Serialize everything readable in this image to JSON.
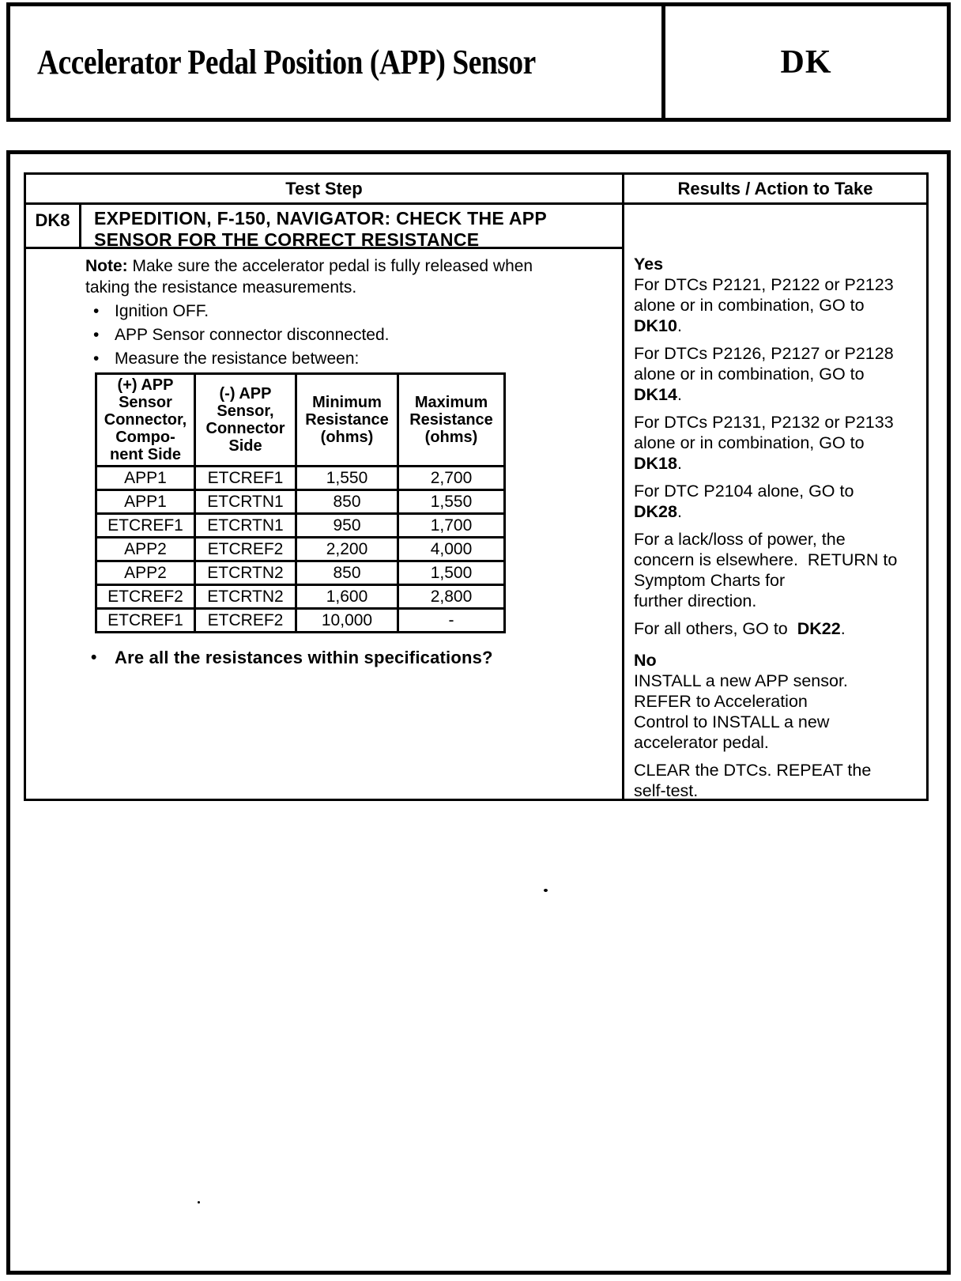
{
  "header": {
    "title": "Accelerator Pedal Position (APP) Sensor",
    "code": "DK"
  },
  "icons": {
    "bullet": "•"
  },
  "test_table": {
    "col_test_step": "Test Step",
    "col_results": "Results / Action to Take",
    "step_id": "DK8",
    "step_title": "EXPEDITION, F-150, NAVIGATOR: CHECK THE APP\nSENSOR FOR THE CORRECT RESISTANCE",
    "note_label": "Note:",
    "note_text": " Make sure the accelerator pedal is fully released when\ntaking the resistance measurements.",
    "bullets": [
      "Ignition OFF.",
      "APP Sensor connector disconnected.",
      "Measure the resistance between:"
    ],
    "question": "Are all the resistances within specifications?",
    "resistance_table": {
      "headers": [
        "(+) APP\nSensor\nConnector,\nCompo-\nnent Side",
        "(-) APP\nSensor,\nConnector\nSide",
        "Minimum\nResistance\n(ohms)",
        "Maximum\nResistance\n(ohms)"
      ],
      "rows": [
        [
          "APP1",
          "ETCREF1",
          "1,550",
          "2,700"
        ],
        [
          "APP1",
          "ETCRTN1",
          "850",
          "1,550"
        ],
        [
          "ETCREF1",
          "ETCRTN1",
          "950",
          "1,700"
        ],
        [
          "APP2",
          "ETCREF2",
          "2,200",
          "4,000"
        ],
        [
          "APP2",
          "ETCRTN2",
          "850",
          "1,500"
        ],
        [
          "ETCREF2",
          "ETCRTN2",
          "1,600",
          "2,800"
        ],
        [
          "ETCREF1",
          "ETCREF2",
          "10,000",
          "-"
        ]
      ]
    },
    "results": {
      "yes_label": "Yes",
      "yes_items": [
        {
          "pre": "For DTCs P2121, P2122 or P2123\nalone or in combination, GO to\n",
          "bold": "DK10",
          "post": "."
        },
        {
          "pre": "For DTCs P2126, P2127 or P2128\nalone or in combination, GO to\n",
          "bold": "DK14",
          "post": "."
        },
        {
          "pre": "For DTCs P2131, P2132 or P2133\nalone or in combination, GO to\n",
          "bold": "DK18",
          "post": "."
        },
        {
          "pre": "For DTC P2104 alone, GO to\n",
          "bold": "DK28",
          "post": "."
        },
        {
          "pre": "For a lack/loss of power, the\nconcern is elsewhere.  RETURN to\nSymptom Charts for\nfurther direction.",
          "bold": "",
          "post": ""
        },
        {
          "pre": "For all others, GO to  ",
          "bold": "DK22",
          "post": "."
        }
      ],
      "no_label": "No",
      "no_items": [
        {
          "pre": "INSTALL a new APP sensor.\nREFER to Acceleration\nControl to INSTALL a new\naccelerator pedal.",
          "bold": "",
          "post": ""
        },
        {
          "pre": "CLEAR the DTCs. REPEAT the\nself-test.",
          "bold": "",
          "post": ""
        }
      ]
    }
  }
}
